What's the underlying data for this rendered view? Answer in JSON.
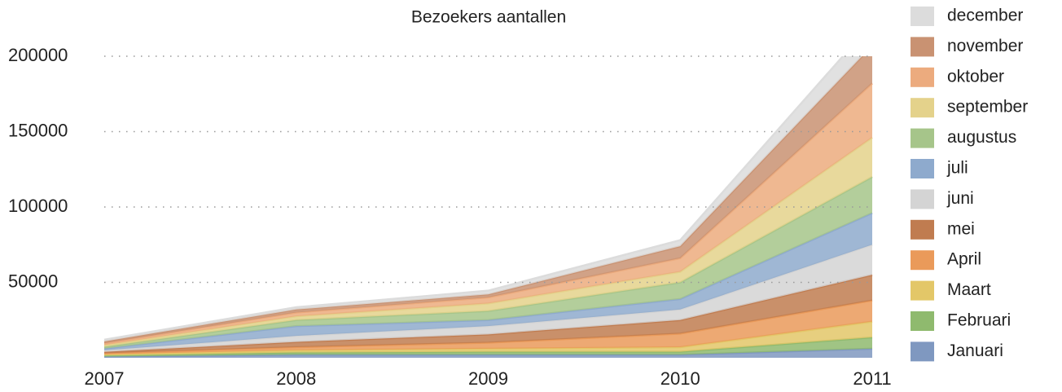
{
  "chart_data": {
    "type": "area",
    "stacked": true,
    "title": "Bezoekers aantallen",
    "x": [
      2007,
      2008,
      2009,
      2010,
      2011
    ],
    "xlim": [
      2007,
      2011
    ],
    "xticks": [
      2007,
      2008,
      2009,
      2010,
      2011
    ],
    "ylim": [
      0,
      200000
    ],
    "yticks": [
      50000,
      100000,
      150000,
      200000
    ],
    "grid": true,
    "legend": "right",
    "series": [
      {
        "name": "Januari",
        "color": "#7f98c0",
        "values": [
          800,
          2000,
          2000,
          2000,
          6000
        ]
      },
      {
        "name": "Februari",
        "color": "#8fba6e",
        "values": [
          700,
          1500,
          2000,
          2000,
          7500
        ]
      },
      {
        "name": "Maart",
        "color": "#e3c768",
        "values": [
          700,
          1500,
          2000,
          3000,
          10500
        ]
      },
      {
        "name": "April",
        "color": "#ea9a5a",
        "values": [
          800,
          2000,
          4000,
          9000,
          14000
        ]
      },
      {
        "name": "mei",
        "color": "#c07c50",
        "values": [
          900,
          3500,
          5500,
          9000,
          17000
        ]
      },
      {
        "name": "juni",
        "color": "#d4d4d4",
        "values": [
          1000,
          4000,
          5500,
          7000,
          20000
        ]
      },
      {
        "name": "juli",
        "color": "#8eaacd",
        "values": [
          1200,
          6500,
          4000,
          7000,
          21000
        ]
      },
      {
        "name": "augustus",
        "color": "#a6c58a",
        "values": [
          1200,
          4000,
          6000,
          11000,
          24000
        ]
      },
      {
        "name": "september",
        "color": "#e4d28b",
        "values": [
          1100,
          2500,
          5000,
          7000,
          26000
        ]
      },
      {
        "name": "oktober",
        "color": "#ecab7e",
        "values": [
          1200,
          2500,
          4000,
          9000,
          36000
        ]
      },
      {
        "name": "november",
        "color": "#c99272",
        "values": [
          1200,
          2000,
          2000,
          8000,
          25000
        ]
      },
      {
        "name": "december",
        "color": "#dcdcdc",
        "values": [
          1200,
          1500,
          2500,
          4000,
          15000
        ]
      }
    ]
  }
}
